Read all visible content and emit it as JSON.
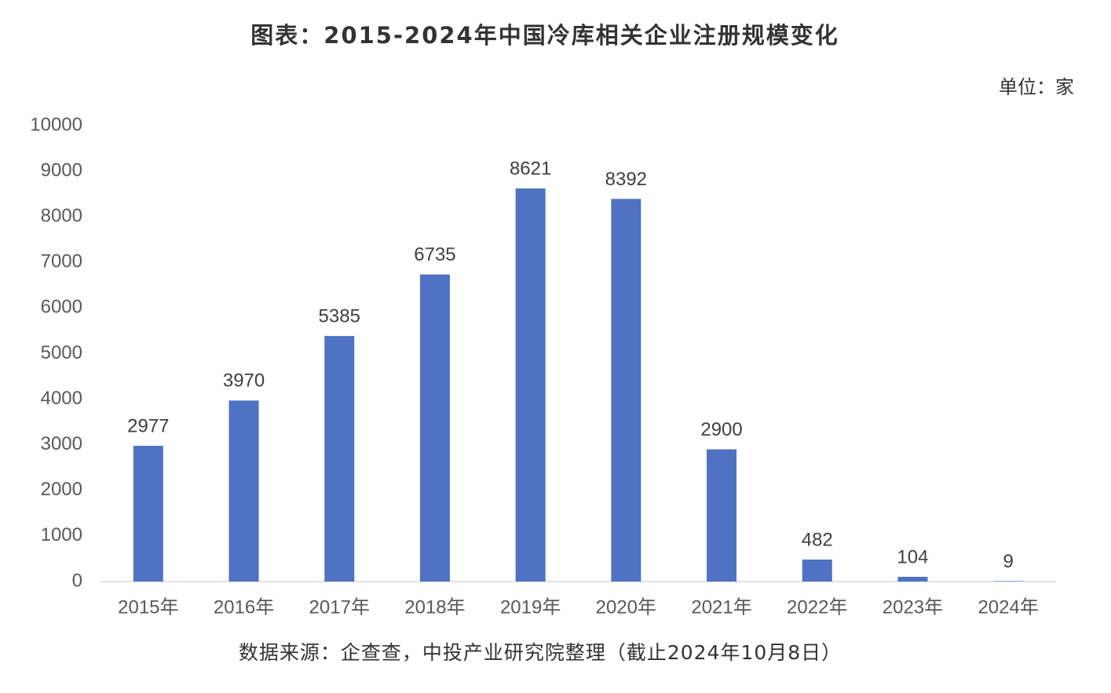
{
  "chart_data": {
    "type": "bar",
    "title": "图表：2015-2024年中国冷库相关企业注册规模变化",
    "unit": "单位：家",
    "source": "数据来源：企查查，中投产业研究院整理（截止2024年10月8日）",
    "categories": [
      "2015年",
      "2016年",
      "2017年",
      "2018年",
      "2019年",
      "2020年",
      "2021年",
      "2022年",
      "2023年",
      "2024年"
    ],
    "values": [
      2977,
      3970,
      5385,
      6735,
      8621,
      8392,
      2900,
      482,
      104,
      9
    ],
    "color": "#4f72c4",
    "ylim": [
      0,
      10000
    ],
    "yticks": [
      0,
      1000,
      2000,
      3000,
      4000,
      5000,
      6000,
      7000,
      8000,
      9000,
      10000
    ],
    "grid": false
  }
}
